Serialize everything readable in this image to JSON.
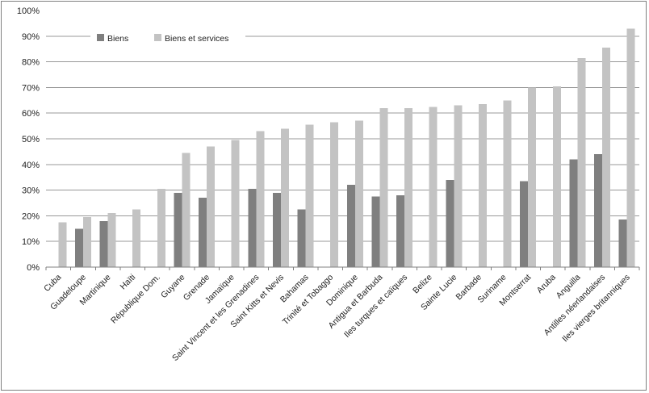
{
  "chart_data": {
    "type": "bar",
    "title": "",
    "xlabel": "",
    "ylabel": "",
    "grid": true,
    "legend_position": "top-left-inside",
    "y_axis": {
      "min": 0,
      "max": 100,
      "step": 10,
      "format": "percent",
      "tick_labels": [
        "0%",
        "10%",
        "20%",
        "30%",
        "40%",
        "50%",
        "60%",
        "70%",
        "80%",
        "90%",
        "100%"
      ]
    },
    "categories": [
      "Cuba",
      "Guadeloupe",
      "Martinique",
      "Haïti",
      "République Dom.",
      "Guyane",
      "Grenade",
      "Jamaïque",
      "Saint Vincent et les Grenadines",
      "Saint Kitts et Nevis",
      "Bahamas",
      "Trinité et Tobaggo",
      "Dominique",
      "Antigua et Barbuda",
      "Iles turques et caïques",
      "Belize",
      "Sainte Lucie",
      "Barbade",
      "Suriname",
      "Montserrat",
      "Aruba",
      "Anguilla",
      "Antilles néerlandaises",
      "Iles vierges britanniques"
    ],
    "series": [
      {
        "name": "Biens",
        "color": "#7f7f7f",
        "values": [
          null,
          15,
          18,
          null,
          null,
          29,
          27,
          null,
          30.5,
          29,
          22.5,
          null,
          32,
          27.5,
          28,
          null,
          34,
          null,
          null,
          33.5,
          null,
          42,
          44,
          18.5
        ]
      },
      {
        "name": "Biens et services",
        "color": "#c3c3c3",
        "values": [
          17.5,
          19.5,
          21,
          22.5,
          30.5,
          44.5,
          47,
          49.5,
          53,
          54,
          55.5,
          56.5,
          57,
          62,
          62,
          62.5,
          63,
          63.5,
          65,
          70,
          70.5,
          81.5,
          85.5,
          93
        ]
      }
    ]
  },
  "colors": {
    "gridline": "#989898",
    "axis_line": "#808080",
    "tick": "#808080",
    "text": "#1f1f1f",
    "legend_background": "#ffffff",
    "chart_border": "#7f7f7f"
  }
}
